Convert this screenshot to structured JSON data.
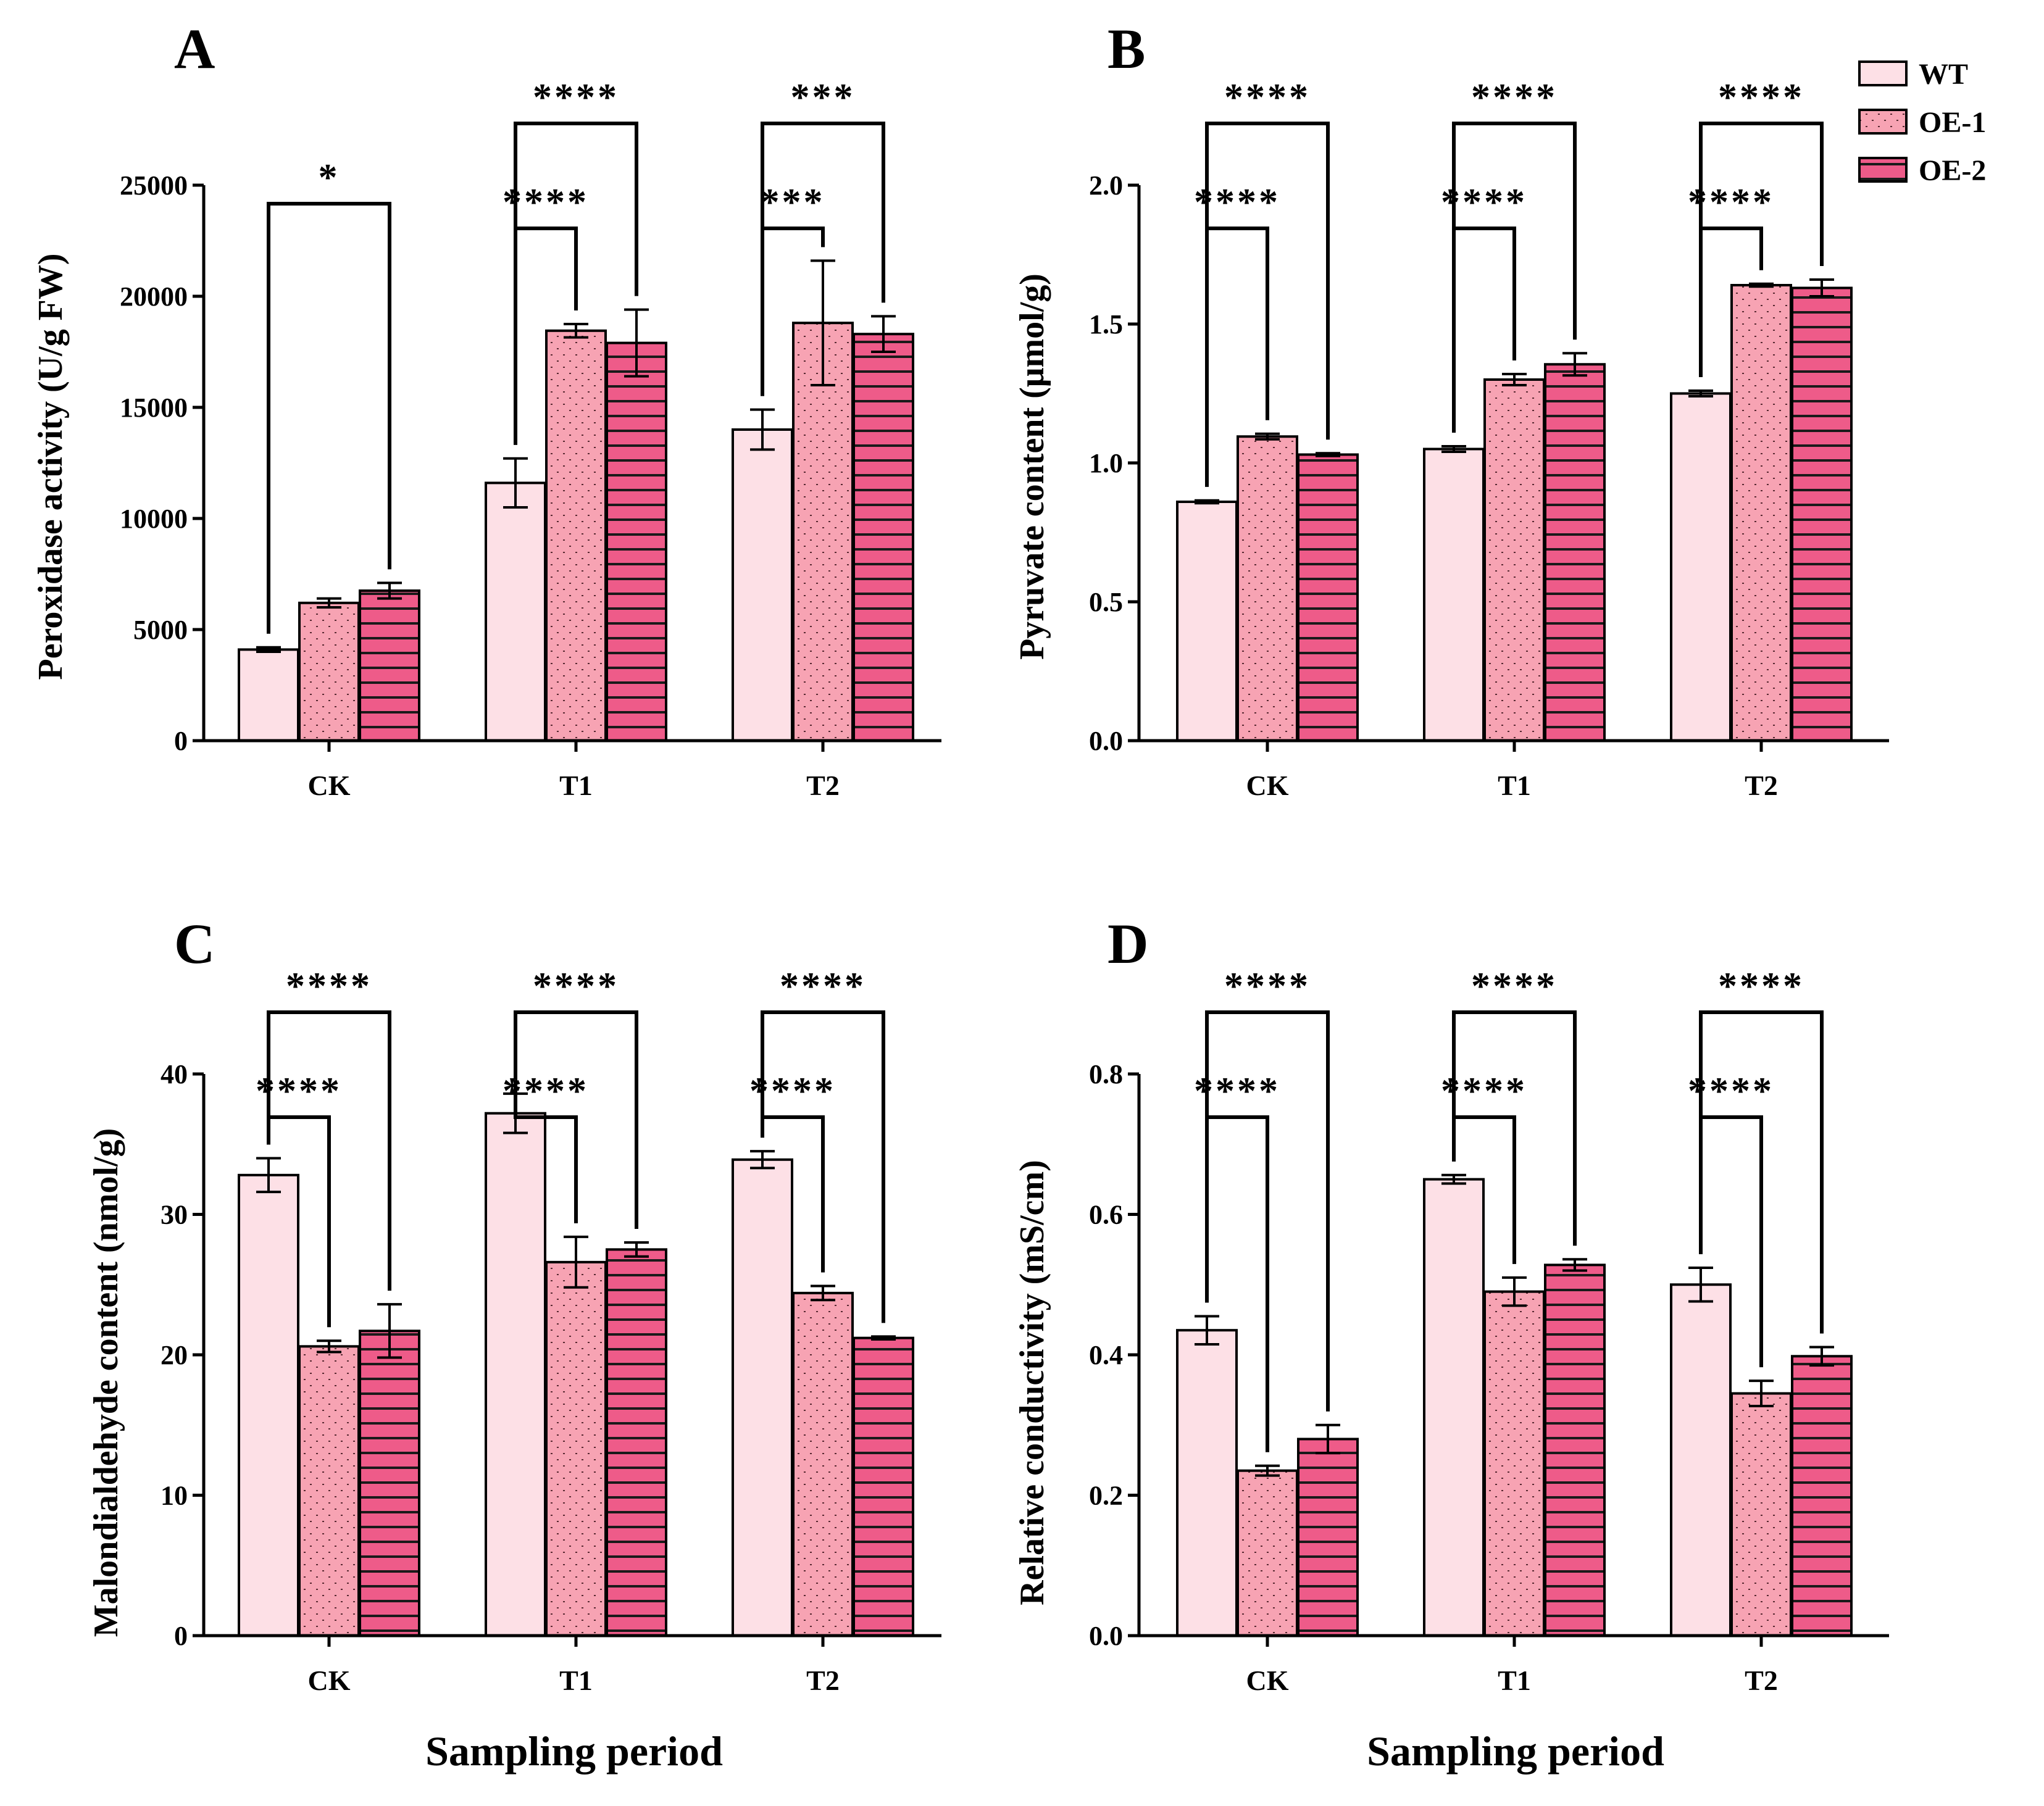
{
  "figure": {
    "xlabel": "Sampling period",
    "legend_placement": "top-right",
    "legend": [
      {
        "name": "WT",
        "color": "#fde0e6",
        "pattern": "none"
      },
      {
        "name": "OE-1",
        "color": "#f7a3b3",
        "pattern": "dots"
      },
      {
        "name": "OE-2",
        "color": "#ee5b89",
        "pattern": "hlines"
      }
    ]
  },
  "chart_data": [
    {
      "type": "bar",
      "label": "A",
      "ylabel": "Peroxidase activity (U/g FW)",
      "xlabel": "",
      "categories": [
        "CK",
        "T1",
        "T2"
      ],
      "ylim": [
        0,
        25000
      ],
      "yticks": [
        0,
        5000,
        10000,
        15000,
        20000,
        25000
      ],
      "ytick_labels": [
        "0",
        "5000",
        "10000",
        "15000",
        "20000",
        "25000"
      ],
      "series": [
        {
          "name": "WT",
          "values": [
            4100,
            11600,
            14000
          ],
          "errors": [
            100,
            1100,
            900
          ]
        },
        {
          "name": "OE-1",
          "values": [
            6200,
            18450,
            18800
          ],
          "errors": [
            200,
            300,
            2800
          ]
        },
        {
          "name": "OE-2",
          "values": [
            6750,
            17900,
            18300
          ],
          "errors": [
            350,
            1500,
            800
          ]
        }
      ],
      "annotations": [
        {
          "category": "CK",
          "from": "WT",
          "to": "OE-2",
          "text": "*"
        },
        {
          "category": "T1",
          "from": "WT",
          "to": "OE-1",
          "text": "****"
        },
        {
          "category": "T1",
          "from": "WT",
          "to": "OE-2",
          "text": "****"
        },
        {
          "category": "T2",
          "from": "WT",
          "to": "OE-1",
          "text": "***"
        },
        {
          "category": "T2",
          "from": "WT",
          "to": "OE-2",
          "text": "***"
        }
      ]
    },
    {
      "type": "bar",
      "label": "B",
      "ylabel": "Pyruvate content (μmol/g)",
      "xlabel": "",
      "categories": [
        "CK",
        "T1",
        "T2"
      ],
      "ylim": [
        0,
        2.0
      ],
      "yticks": [
        0,
        0.5,
        1.0,
        1.5,
        2.0
      ],
      "ytick_labels": [
        "0.0",
        "0.5",
        "1.0",
        "1.5",
        "2.0"
      ],
      "series": [
        {
          "name": "WT",
          "values": [
            0.86,
            1.05,
            1.25
          ],
          "errors": [
            0.005,
            0.01,
            0.01
          ]
        },
        {
          "name": "OE-1",
          "values": [
            1.095,
            1.3,
            1.64
          ],
          "errors": [
            0.01,
            0.02,
            0.005
          ]
        },
        {
          "name": "OE-2",
          "values": [
            1.03,
            1.355,
            1.63
          ],
          "errors": [
            0.005,
            0.04,
            0.03
          ]
        }
      ],
      "annotations": [
        {
          "category": "CK",
          "from": "WT",
          "to": "OE-1",
          "text": "****"
        },
        {
          "category": "CK",
          "from": "WT",
          "to": "OE-2",
          "text": "****"
        },
        {
          "category": "T1",
          "from": "WT",
          "to": "OE-1",
          "text": "****"
        },
        {
          "category": "T1",
          "from": "WT",
          "to": "OE-2",
          "text": "****"
        },
        {
          "category": "T2",
          "from": "WT",
          "to": "OE-1",
          "text": "****"
        },
        {
          "category": "T2",
          "from": "WT",
          "to": "OE-2",
          "text": "****"
        }
      ]
    },
    {
      "type": "bar",
      "label": "C",
      "ylabel": "Malondialdehyde content (nmol/g)",
      "xlabel": "Sampling period",
      "categories": [
        "CK",
        "T1",
        "T2"
      ],
      "ylim": [
        0,
        40
      ],
      "yticks": [
        0,
        10,
        20,
        30,
        40
      ],
      "ytick_labels": [
        "0",
        "10",
        "20",
        "30",
        "40"
      ],
      "series": [
        {
          "name": "WT",
          "values": [
            32.8,
            37.2,
            33.9
          ],
          "errors": [
            1.2,
            1.4,
            0.6
          ]
        },
        {
          "name": "OE-1",
          "values": [
            20.6,
            26.6,
            24.4
          ],
          "errors": [
            0.4,
            1.8,
            0.5
          ]
        },
        {
          "name": "OE-2",
          "values": [
            21.7,
            27.5,
            21.2
          ],
          "errors": [
            1.9,
            0.5,
            0.1
          ]
        }
      ],
      "annotations": [
        {
          "category": "CK",
          "from": "WT",
          "to": "OE-1",
          "text": "****"
        },
        {
          "category": "CK",
          "from": "WT",
          "to": "OE-2",
          "text": "****"
        },
        {
          "category": "T1",
          "from": "WT",
          "to": "OE-1",
          "text": "****"
        },
        {
          "category": "T1",
          "from": "WT",
          "to": "OE-2",
          "text": "****"
        },
        {
          "category": "T2",
          "from": "WT",
          "to": "OE-1",
          "text": "****"
        },
        {
          "category": "T2",
          "from": "WT",
          "to": "OE-2",
          "text": "****"
        }
      ]
    },
    {
      "type": "bar",
      "label": "D",
      "ylabel": "Relative conductivity (mS/cm)",
      "xlabel": "Sampling period",
      "categories": [
        "CK",
        "T1",
        "T2"
      ],
      "ylim": [
        0,
        0.8
      ],
      "yticks": [
        0,
        0.2,
        0.4,
        0.6,
        0.8
      ],
      "ytick_labels": [
        "0.0",
        "0.2",
        "0.4",
        "0.6",
        "0.8"
      ],
      "series": [
        {
          "name": "WT",
          "values": [
            0.435,
            0.65,
            0.5
          ],
          "errors": [
            0.02,
            0.006,
            0.024
          ]
        },
        {
          "name": "OE-1",
          "values": [
            0.235,
            0.49,
            0.345
          ],
          "errors": [
            0.007,
            0.02,
            0.018
          ]
        },
        {
          "name": "OE-2",
          "values": [
            0.28,
            0.528,
            0.398
          ],
          "errors": [
            0.02,
            0.008,
            0.013
          ]
        }
      ],
      "annotations": [
        {
          "category": "CK",
          "from": "WT",
          "to": "OE-1",
          "text": "****"
        },
        {
          "category": "CK",
          "from": "WT",
          "to": "OE-2",
          "text": "****"
        },
        {
          "category": "T1",
          "from": "WT",
          "to": "OE-1",
          "text": "****"
        },
        {
          "category": "T1",
          "from": "WT",
          "to": "OE-2",
          "text": "****"
        },
        {
          "category": "T2",
          "from": "WT",
          "to": "OE-1",
          "text": "****"
        },
        {
          "category": "T2",
          "from": "WT",
          "to": "OE-2",
          "text": "****"
        }
      ]
    }
  ]
}
